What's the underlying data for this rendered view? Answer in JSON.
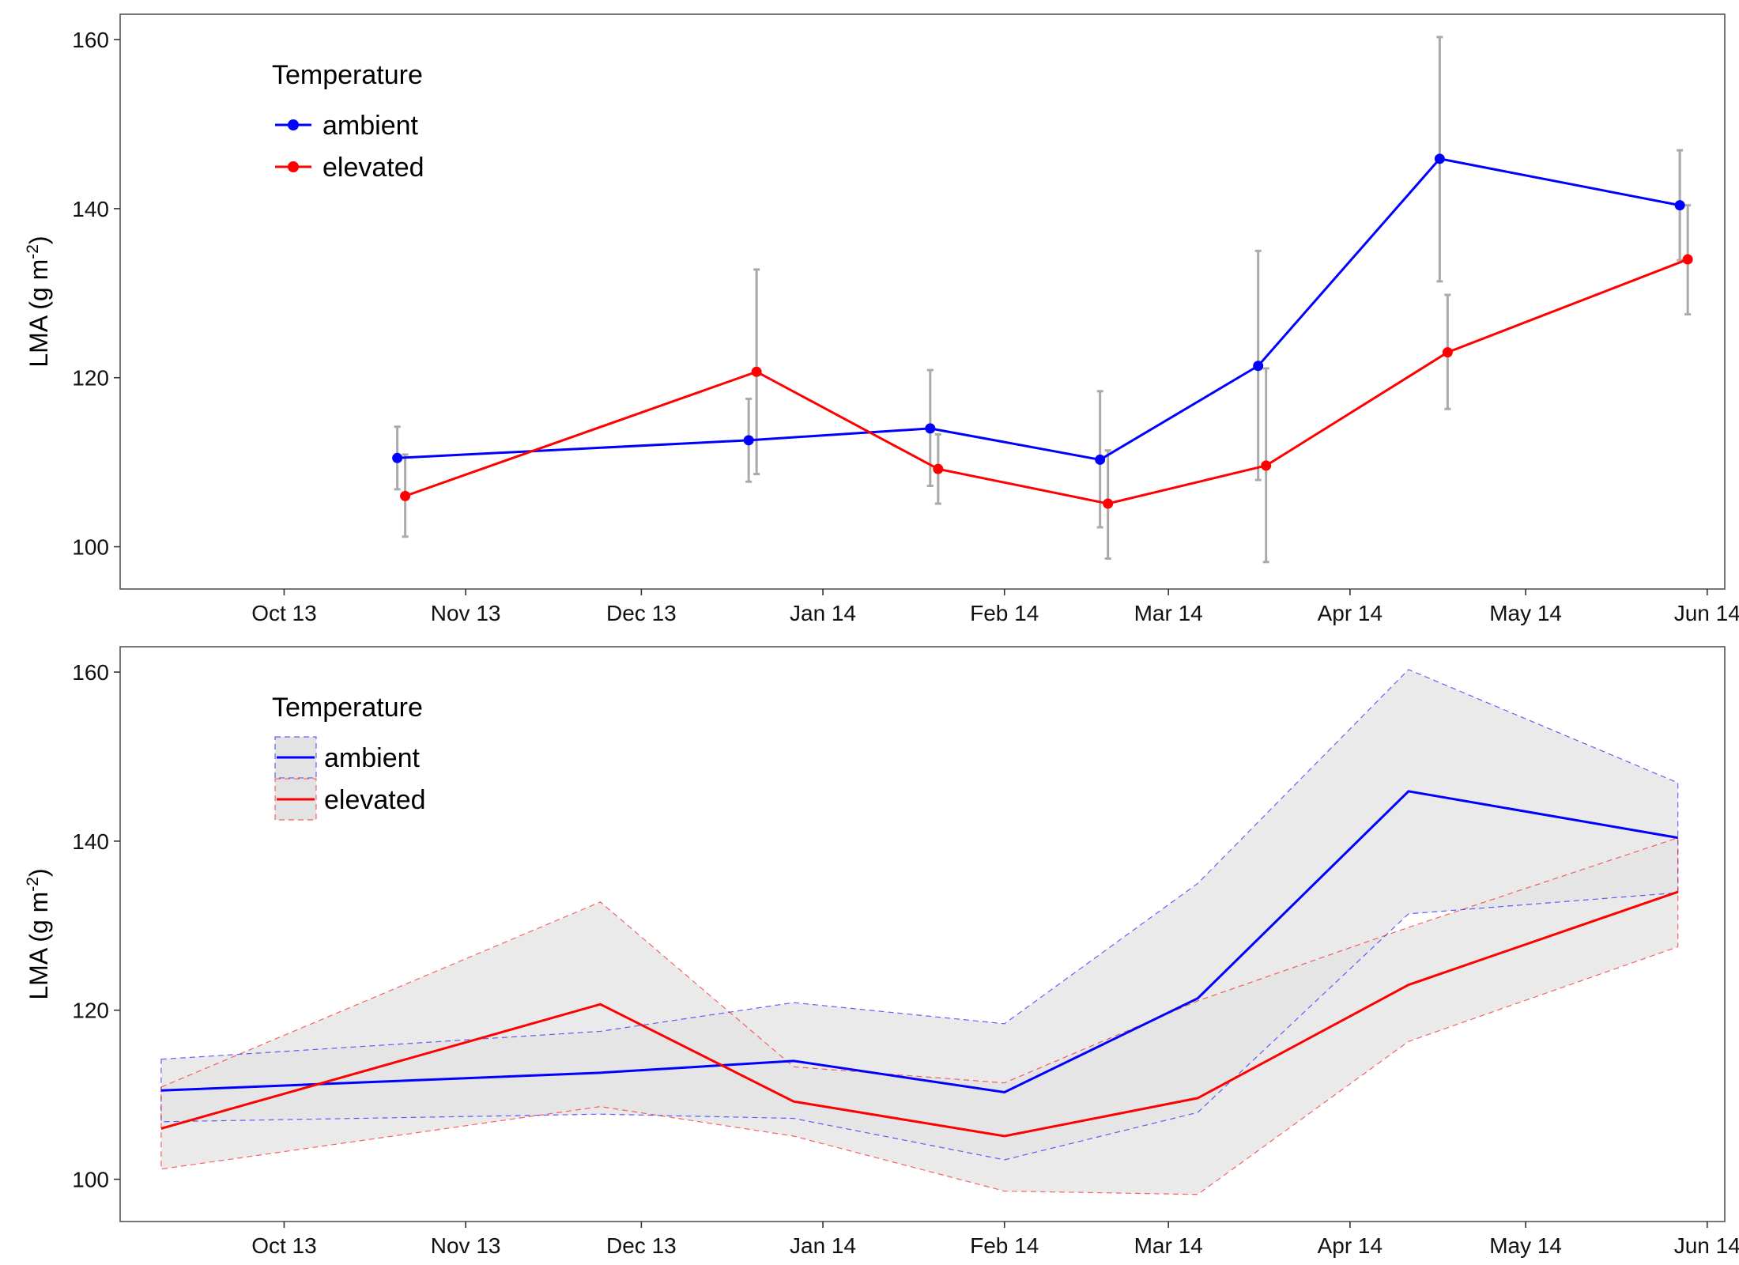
{
  "chart_data": [
    {
      "type": "line",
      "x_type": "date",
      "x": [
        "2013-10-21",
        "2013-12-20",
        "2014-01-20",
        "2014-02-18",
        "2014-03-17",
        "2014-04-17",
        "2014-05-28"
      ],
      "xlim": [
        "2013-09-03",
        "2014-06-04"
      ],
      "x_ticks": [
        {
          "date": "2013-10-01",
          "label": "Oct 13"
        },
        {
          "date": "2013-11-01",
          "label": "Nov 13"
        },
        {
          "date": "2013-12-01",
          "label": "Dec 13"
        },
        {
          "date": "2014-01-01",
          "label": "Jan 14"
        },
        {
          "date": "2014-02-01",
          "label": "Feb 14"
        },
        {
          "date": "2014-03-01",
          "label": "Mar 14"
        },
        {
          "date": "2014-04-01",
          "label": "Apr 14"
        },
        {
          "date": "2014-05-01",
          "label": "May 14"
        },
        {
          "date": "2014-06-01",
          "label": "Jun 14"
        }
      ],
      "ylabel_main": "LMA (g m",
      "ylabel_sup": "-2",
      "ylabel_close": ")",
      "ylim": [
        95,
        163
      ],
      "y_ticks": [
        100,
        120,
        140,
        160
      ],
      "grid": false,
      "legend": {
        "title": "Temperature",
        "position": "top-left",
        "style": "points-and-lines"
      },
      "error_bar_color": "#aaaaaa",
      "series": [
        {
          "name": "ambient",
          "color": "#0000ff",
          "values": [
            110.5,
            112.6,
            114.0,
            110.3,
            121.4,
            145.9,
            140.4
          ],
          "lower": [
            106.8,
            107.7,
            107.2,
            102.3,
            107.9,
            131.4,
            133.9
          ],
          "upper": [
            114.2,
            117.5,
            120.9,
            118.4,
            135.0,
            160.3,
            146.9
          ]
        },
        {
          "name": "elevated",
          "color": "#ff0000",
          "values": [
            106.0,
            120.7,
            109.2,
            105.1,
            109.6,
            123.0,
            134.0
          ],
          "lower": [
            101.2,
            108.6,
            105.1,
            98.6,
            98.2,
            116.3,
            127.5
          ],
          "upper": [
            110.9,
            132.8,
            113.3,
            111.4,
            121.1,
            129.8,
            140.4
          ]
        }
      ]
    },
    {
      "type": "area",
      "x_type": "date",
      "x": [
        "2013-09-10",
        "2013-11-24",
        "2013-12-27",
        "2014-02-01",
        "2014-03-06",
        "2014-04-11",
        "2014-05-27"
      ],
      "xlim": [
        "2013-09-03",
        "2014-06-04"
      ],
      "x_ticks": [
        {
          "date": "2013-10-01",
          "label": "Oct 13"
        },
        {
          "date": "2013-11-01",
          "label": "Nov 13"
        },
        {
          "date": "2013-12-01",
          "label": "Dec 13"
        },
        {
          "date": "2014-01-01",
          "label": "Jan 14"
        },
        {
          "date": "2014-02-01",
          "label": "Feb 14"
        },
        {
          "date": "2014-03-01",
          "label": "Mar 14"
        },
        {
          "date": "2014-04-01",
          "label": "Apr 14"
        },
        {
          "date": "2014-05-01",
          "label": "May 14"
        },
        {
          "date": "2014-06-01",
          "label": "Jun 14"
        }
      ],
      "ylabel_main": "LMA (g m",
      "ylabel_sup": "-2",
      "ylabel_close": ")",
      "ylim": [
        95,
        163
      ],
      "y_ticks": [
        100,
        120,
        140,
        160
      ],
      "grid": false,
      "legend": {
        "title": "Temperature",
        "position": "top-left",
        "style": "lines-with-ribbons"
      },
      "ribbon_fill": "#e3e3e3",
      "series": [
        {
          "name": "ambient",
          "color": "#0000ff",
          "values": [
            110.5,
            112.6,
            114.0,
            110.3,
            121.4,
            145.9,
            140.4
          ],
          "lower": [
            106.8,
            107.7,
            107.2,
            102.3,
            107.9,
            131.4,
            133.9
          ],
          "upper": [
            114.2,
            117.5,
            120.9,
            118.4,
            135.0,
            160.3,
            146.9
          ]
        },
        {
          "name": "elevated",
          "color": "#ff0000",
          "values": [
            106.0,
            120.7,
            109.2,
            105.1,
            109.6,
            123.0,
            134.0
          ],
          "lower": [
            101.2,
            108.6,
            105.1,
            98.6,
            98.2,
            116.3,
            127.5
          ],
          "upper": [
            110.9,
            132.8,
            113.3,
            111.4,
            121.1,
            129.8,
            140.4
          ]
        }
      ]
    }
  ]
}
